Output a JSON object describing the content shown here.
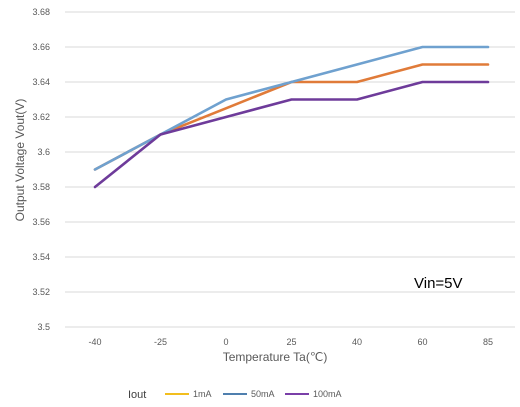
{
  "chart_data": {
    "type": "line",
    "title": "",
    "xlabel": "Temperature Ta(℃)",
    "ylabel": "Output Voltage Vout(V)",
    "categories": [
      "-40",
      "-25",
      "0",
      "25",
      "40",
      "60",
      "85"
    ],
    "ylim": [
      3.5,
      3.68
    ],
    "yticks": [
      "3.5",
      "3.52",
      "3.54",
      "3.56",
      "3.58",
      "3.6",
      "3.62",
      "3.64",
      "3.66",
      "3.68"
    ],
    "grid": true,
    "legend_title": "Iout",
    "legend_placement": "bottom",
    "annotation": "Vin=5V",
    "series": [
      {
        "name": "1mA",
        "color": "#E07B39",
        "legend_color": "#F2BE1E",
        "values": [
          3.59,
          3.61,
          3.625,
          3.64,
          3.64,
          3.65,
          3.65
        ]
      },
      {
        "name": "50mA",
        "color": "#6FA1CF",
        "legend_color": "#4F7FAE",
        "values": [
          3.59,
          3.61,
          3.63,
          3.64,
          3.65,
          3.66,
          3.66
        ]
      },
      {
        "name": "100mA",
        "color": "#6E3B9A",
        "legend_color": "#7A3FA8",
        "values": [
          3.58,
          3.61,
          3.62,
          3.63,
          3.63,
          3.64,
          3.64
        ]
      }
    ]
  }
}
